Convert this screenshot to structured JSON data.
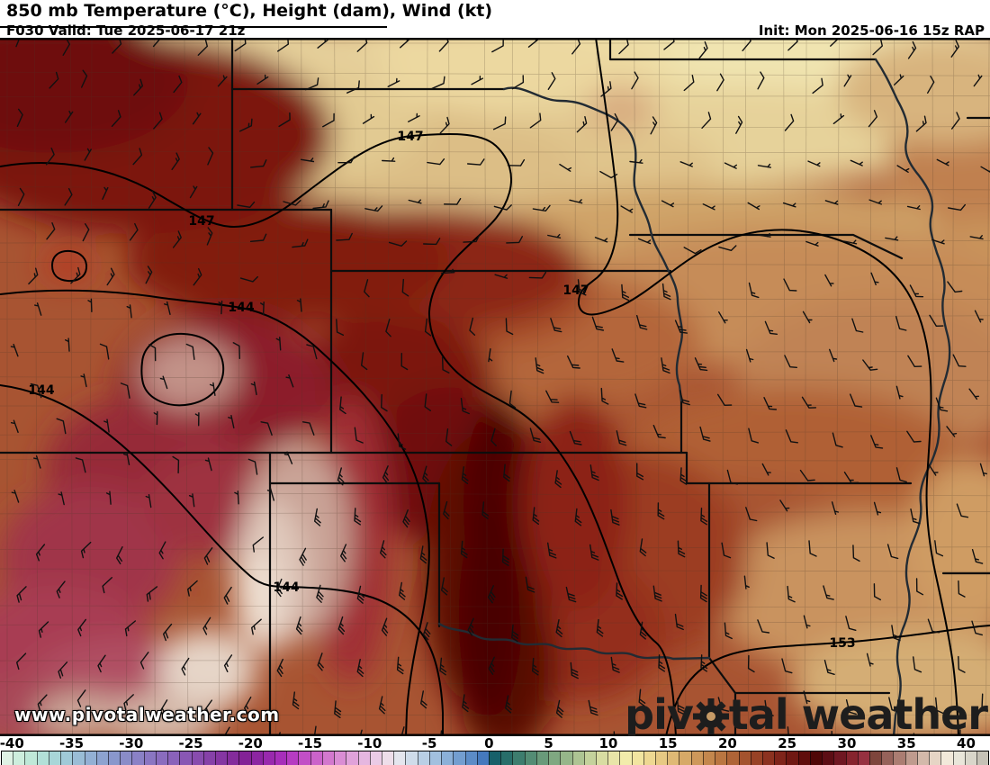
{
  "header": {
    "title": "850 mb Temperature (°C), Height (dam), Wind (kt)",
    "valid": "F030 Valid: Tue 2025-06-17 21z",
    "init": "Init: Mon 2025-06-16 15z RAP"
  },
  "watermark": {
    "url": "www.pivotalweather.com",
    "logo_pre": "piv",
    "logo_post": "tal weather"
  },
  "contours": {
    "l147": "147",
    "l144": "144",
    "l153": "153"
  },
  "colorbar": {
    "units": "°C",
    "min": -41,
    "max": 42,
    "tick_values": [
      -40,
      -35,
      -30,
      -25,
      -20,
      -15,
      -10,
      -5,
      0,
      5,
      10,
      15,
      20,
      25,
      30,
      35,
      40
    ],
    "tick_labels": [
      "-40",
      "-35",
      "-30",
      "-25",
      "-20",
      "-15",
      "-10",
      "-5",
      "0",
      "5",
      "10",
      "15",
      "20",
      "25",
      "30",
      "35",
      "40"
    ],
    "colors": [
      "#def2e4",
      "#cdeedd",
      "#bfe8d8",
      "#b2e0d8",
      "#a8d6d8",
      "#a0cad8",
      "#9abdd6",
      "#93b0d4",
      "#8da3d0",
      "#8997cc",
      "#8a8cc8",
      "#8a81c6",
      "#8a76c2",
      "#8a6cbe",
      "#8a62ba",
      "#8957b4",
      "#884cae",
      "#8641a8",
      "#8536a2",
      "#842c9c",
      "#832296",
      "#8c25a2",
      "#9929ae",
      "#a72eba",
      "#b63cc2",
      "#c24fc6",
      "#cb63ca",
      "#d378ce",
      "#da8dd4",
      "#e0a2da",
      "#e5b7e0",
      "#eacbe6",
      "#eedeea",
      "#e4e6ee",
      "#cfdcea",
      "#b9cfe5",
      "#a2c0df",
      "#8bb0d8",
      "#739ed0",
      "#5c8cc7",
      "#4579bd",
      "#17606a",
      "#286e6a",
      "#3d7d6e",
      "#538c74",
      "#699a7a",
      "#7fa881",
      "#96b68a",
      "#adc493",
      "#c4d29c",
      "#d8dda2",
      "#e8e5a8",
      "#f2ecab",
      "#f2e5a0",
      "#eed892",
      "#e7c983",
      "#dfb975",
      "#d7a967",
      "#ce985a",
      "#c4874d",
      "#ba7641",
      "#af6437",
      "#a4532e",
      "#984226",
      "#8c3220",
      "#7f241a",
      "#701813",
      "#600d0c",
      "#4f0707",
      "#5c0d14",
      "#6f1722",
      "#86242e",
      "#963040",
      "#7e453c",
      "#96625a",
      "#ab7d72",
      "#bf9b8e",
      "#d3b9aa",
      "#e6d5c5",
      "#f2e9da",
      "#e9e6da",
      "#d9d6ca",
      "#c6c2b6"
    ]
  },
  "wind": {
    "units": "kt",
    "col_step": 47,
    "row_step": 42,
    "stem_len": 14,
    "regions": [
      {
        "x": [
          600,
          1100
        ],
        "y": [
          42,
          150
        ],
        "dir": 40,
        "spd": 10
      },
      {
        "x": [
          245,
          600
        ],
        "y": [
          42,
          170
        ],
        "dir": 55,
        "spd": 10
      },
      {
        "x": [
          0,
          245
        ],
        "y": [
          42,
          340
        ],
        "dir": 35,
        "spd": 10
      },
      {
        "x": [
          600,
          1100
        ],
        "y": [
          150,
          300
        ],
        "dir": 110,
        "spd": 5
      },
      {
        "x": [
          245,
          600
        ],
        "y": [
          170,
          310
        ],
        "dir": 95,
        "spd": 10
      },
      {
        "x": [
          0,
          370
        ],
        "y": [
          340,
          565
        ],
        "dir": 350,
        "spd": 5
      },
      {
        "x": [
          370,
          570
        ],
        "y": [
          310,
          505
        ],
        "dir": 185,
        "spd": 10
      },
      {
        "x": [
          570,
          790
        ],
        "y": [
          310,
          505
        ],
        "dir": 165,
        "spd": 20
      },
      {
        "x": [
          790,
          1100
        ],
        "y": [
          300,
          565
        ],
        "dir": 155,
        "spd": 10
      },
      {
        "x": [
          0,
          300
        ],
        "y": [
          565,
          818
        ],
        "dir": 220,
        "spd": 15
      },
      {
        "x": [
          300,
          570
        ],
        "y": [
          505,
          818
        ],
        "dir": 195,
        "spd": 25
      },
      {
        "x": [
          570,
          790
        ],
        "y": [
          505,
          818
        ],
        "dir": 180,
        "spd": 25
      },
      {
        "x": [
          790,
          1100
        ],
        "y": [
          565,
          818
        ],
        "dir": 170,
        "spd": 10
      }
    ]
  }
}
